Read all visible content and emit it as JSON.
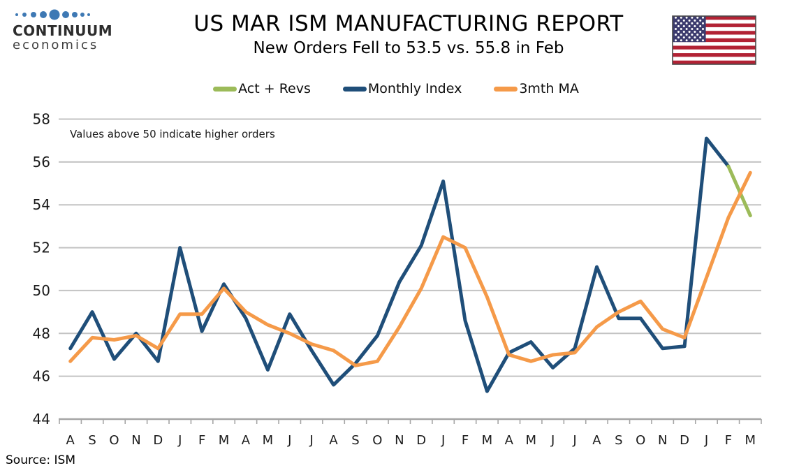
{
  "logo": {
    "line1": "CONTINUUM",
    "line2": "economics",
    "dot_color": "#3E79B4"
  },
  "header": {
    "title": "US MAR ISM MANUFACTURING REPORT",
    "subtitle": "New Orders Fell to 53.5 vs. 55.8 in Feb"
  },
  "legend": [
    {
      "label": "Act + Revs",
      "color": "#9CBB59"
    },
    {
      "label": "Monthly Index",
      "color": "#1F4E79"
    },
    {
      "label": "3mth MA",
      "color": "#F59A49"
    }
  ],
  "annotation": "Values above 50 indicate higher orders",
  "source": "Source: ISM",
  "colors": {
    "gridline": "#C3C3C3",
    "axis": "#A6A6A6",
    "flag_red": "#B22234",
    "flag_blue": "#3C3B6E"
  },
  "chart_data": {
    "type": "line",
    "title": "US MAR ISM MANUFACTURING REPORT",
    "subtitle": "New Orders Fell to 53.5 vs. 55.8 in Feb",
    "xlabel": "",
    "ylabel": "",
    "ylim": [
      44,
      58
    ],
    "yticks": [
      44,
      46,
      48,
      50,
      52,
      54,
      56,
      58
    ],
    "grid": true,
    "legend_position": "top",
    "x_labels": [
      "A",
      "S",
      "O",
      "N",
      "D",
      "J",
      "F",
      "M",
      "A",
      "M",
      "J",
      "J",
      "A",
      "S",
      "O",
      "N",
      "D",
      "J",
      "F",
      "M",
      "A",
      "M",
      "J",
      "J",
      "A",
      "S",
      "O",
      "N",
      "D",
      "J",
      "F",
      "M"
    ],
    "series": [
      {
        "name": "Monthly Index",
        "color": "#1F4E79",
        "values": [
          47.3,
          49.0,
          46.8,
          48.0,
          46.7,
          52.0,
          48.1,
          50.3,
          48.7,
          46.3,
          48.9,
          47.2,
          45.6,
          46.6,
          47.9,
          50.4,
          52.1,
          55.1,
          48.6,
          45.3,
          47.1,
          47.6,
          46.4,
          47.3,
          51.1,
          48.7,
          48.7,
          47.3,
          47.4,
          57.1,
          55.8,
          null
        ]
      },
      {
        "name": "Act + Revs",
        "color": "#9CBB59",
        "values": [
          null,
          null,
          null,
          null,
          null,
          null,
          null,
          null,
          null,
          null,
          null,
          null,
          null,
          null,
          null,
          null,
          null,
          null,
          null,
          null,
          null,
          null,
          null,
          null,
          null,
          null,
          null,
          null,
          null,
          null,
          55.8,
          53.5
        ]
      },
      {
        "name": "3mth MA",
        "color": "#F59A49",
        "values": [
          46.7,
          47.8,
          47.7,
          47.9,
          47.3,
          48.9,
          48.9,
          50.1,
          49.0,
          48.4,
          48.0,
          47.5,
          47.2,
          46.5,
          46.7,
          48.3,
          50.1,
          52.5,
          52.0,
          49.7,
          47.0,
          46.7,
          47.0,
          47.1,
          48.3,
          49.0,
          49.5,
          48.2,
          47.8,
          50.6,
          53.4,
          55.5
        ]
      }
    ]
  }
}
